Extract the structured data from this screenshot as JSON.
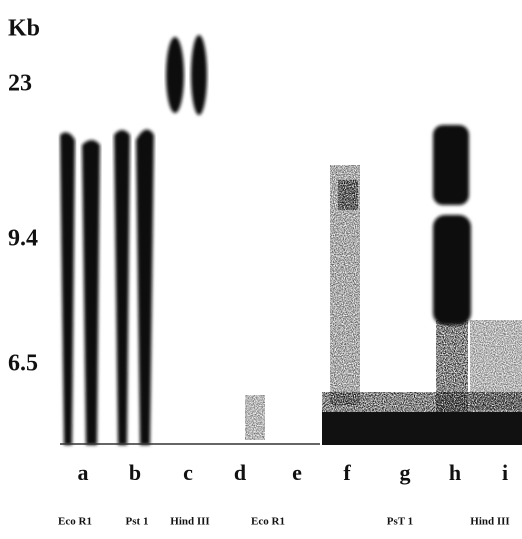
{
  "unit_label": "Kb",
  "size_markers": [
    "23",
    "9.4",
    "6.5"
  ],
  "lanes": [
    "a",
    "b",
    "c",
    "d",
    "e",
    "f",
    "g",
    "h",
    "i"
  ],
  "enzymes": [
    "Eco R1",
    "Pst 1",
    "Hind III",
    "Eco R1",
    "PsT 1",
    "Hind III"
  ]
}
